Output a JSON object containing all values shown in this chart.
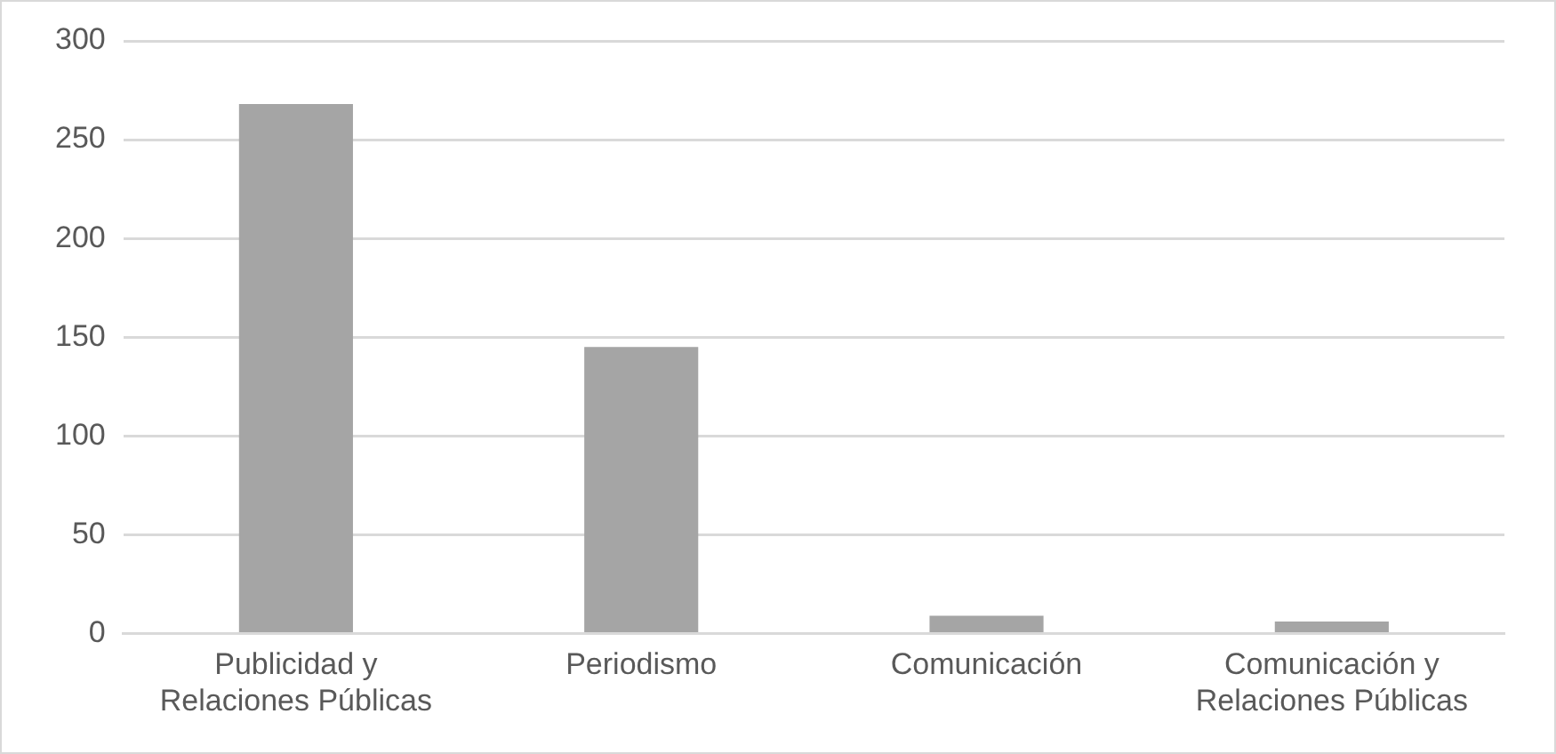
{
  "chart_data": {
    "type": "bar",
    "categories": [
      "Publicidad y Relaciones Públicas",
      "Periodismo",
      "Comunicación",
      "Comunicación y Relaciones Públicas"
    ],
    "values": [
      268,
      145,
      9,
      6
    ],
    "color": "#a5a5a5",
    "ylim": [
      0,
      300
    ],
    "yticks": [
      0,
      50,
      100,
      150,
      200,
      250,
      300
    ],
    "grid": "y",
    "legend": false
  }
}
